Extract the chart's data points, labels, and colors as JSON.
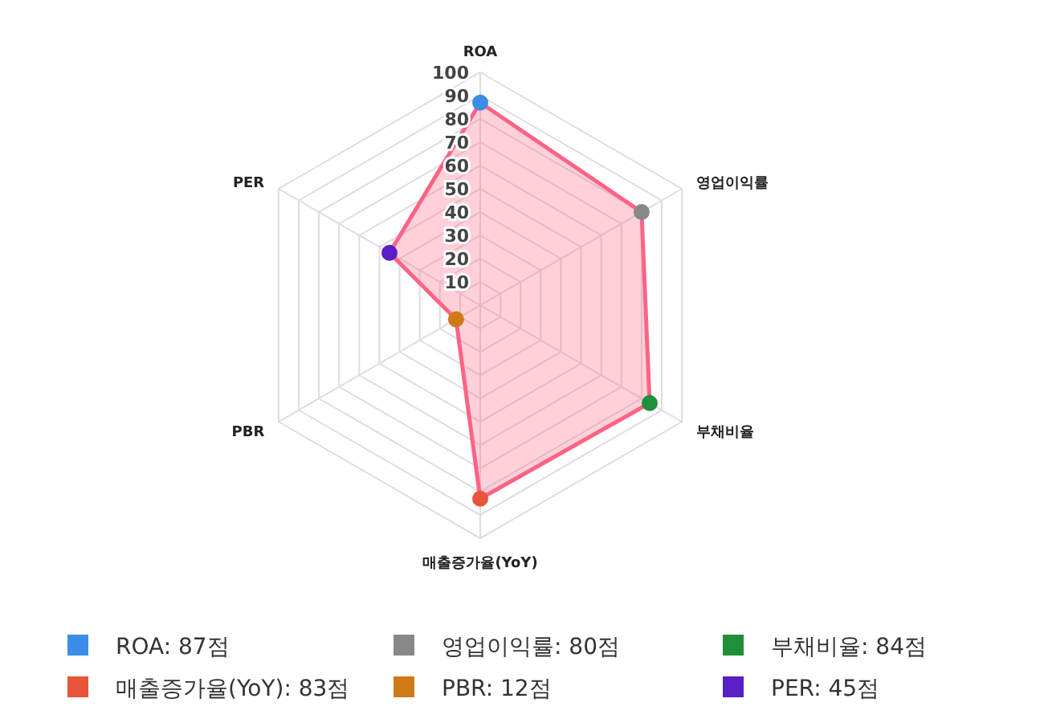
{
  "chart_data": {
    "type": "radar",
    "categories": [
      "ROA",
      "영업이익률",
      "부채비율",
      "매출증가율(YoY)",
      "PBR",
      "PER"
    ],
    "series": [
      {
        "color": "#ff6384",
        "values": [
          87,
          80,
          84,
          83,
          12,
          45
        ],
        "colors": [
          "#3a8ee6",
          "#888888",
          "#1f8f3a",
          "#e8553a",
          "#d07a17",
          "#5a1fc4"
        ]
      }
    ],
    "annotations": [
      "ROA: 87점",
      "영업이익률: 80점",
      "부채비율: 84점",
      "매출증가율(YoY): 83점",
      "PBR: 12점",
      "PER: 45점"
    ],
    "ylim": [
      0,
      100
    ],
    "yticks": [
      10,
      20,
      30,
      40,
      50,
      60,
      70,
      80,
      90,
      100
    ],
    "grid": true,
    "marker": "circle"
  }
}
